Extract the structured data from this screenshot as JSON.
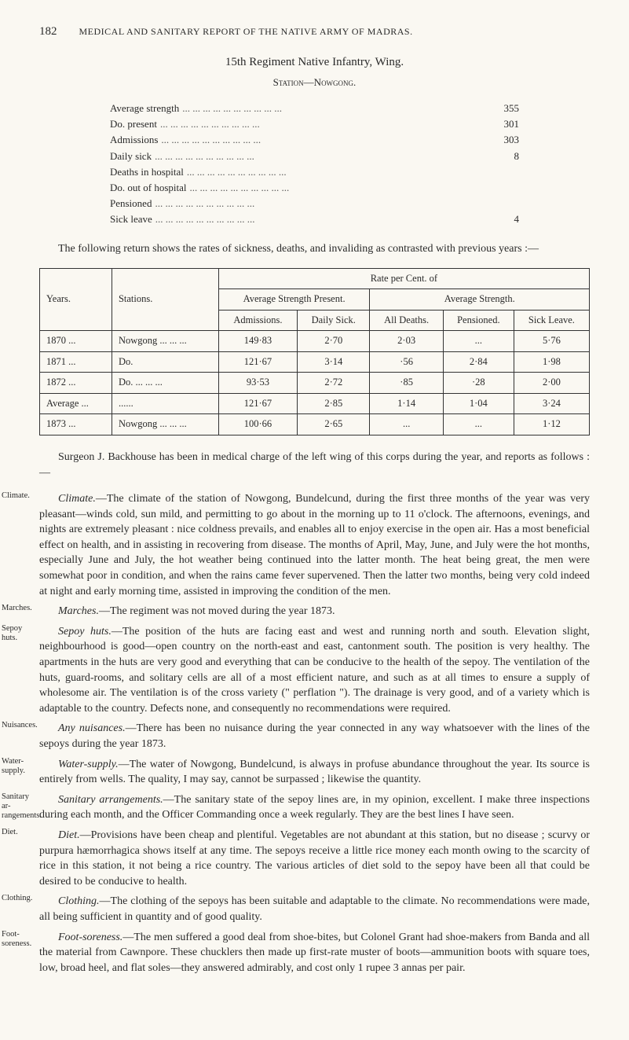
{
  "page": {
    "number": "182",
    "running_title": "MEDICAL AND SANITARY REPORT OF THE NATIVE ARMY OF MADRAS."
  },
  "section_title": "15th Regiment Native Infantry, Wing.",
  "station": "Station—Nowgong.",
  "stats": [
    {
      "label": "Average strength",
      "value": "355"
    },
    {
      "label": "Do.            present",
      "value": "301"
    },
    {
      "label": "Admissions",
      "value": "303"
    },
    {
      "label": "Daily sick",
      "value": "8"
    },
    {
      "label": "Deaths in hospital",
      "value": ""
    },
    {
      "label": "Do.  out of hospital",
      "value": ""
    },
    {
      "label": "Pensioned",
      "value": ""
    },
    {
      "label": "Sick leave",
      "value": "4"
    }
  ],
  "dots": "...   ...   ...   ...   ...   ...   ...   ...   ...   ...",
  "intro_para": "The following return shows the rates of sickness, deaths, and invaliding as contrasted with previous years :—",
  "table": {
    "super_header": "Rate per Cent. of",
    "headers": {
      "years": "Years.",
      "stations": "Stations.",
      "avg_present": "Average Strength Present.",
      "avg_strength": "Average Strength.",
      "admissions": "Admissions.",
      "daily_sick": "Daily Sick.",
      "all_deaths": "All Deaths.",
      "pensioned": "Pensioned.",
      "sick_leave": "Sick Leave."
    },
    "rows": [
      {
        "year": "1870   ...",
        "station": "Nowgong   ...   ...   ...",
        "admissions": "149·83",
        "daily_sick": "2·70",
        "all_deaths": "2·03",
        "pensioned": "...",
        "sick_leave": "5·76"
      },
      {
        "year": "1871   ...",
        "station": "Do.",
        "admissions": "121·67",
        "daily_sick": "3·14",
        "all_deaths": "·56",
        "pensioned": "2·84",
        "sick_leave": "1·98"
      },
      {
        "year": "1872   ...",
        "station": "Do.   ...   ...   ...",
        "admissions": "93·53",
        "daily_sick": "2·72",
        "all_deaths": "·85",
        "pensioned": "·28",
        "sick_leave": "2·00"
      }
    ],
    "average_row": {
      "year": "Average ...",
      "station": "......",
      "admissions": "121·67",
      "daily_sick": "2·85",
      "all_deaths": "1·14",
      "pensioned": "1·04",
      "sick_leave": "3·24"
    },
    "final_row": {
      "year": "1873   ...",
      "station": "Nowgong   ...   ...   ...",
      "admissions": "100·66",
      "daily_sick": "2·65",
      "all_deaths": "...",
      "pensioned": "...",
      "sick_leave": "1·12"
    }
  },
  "surgeon_para": "Surgeon J. Backhouse has been in medical charge of the left wing of this corps during the year, and reports as follows :—",
  "margin_sections": [
    {
      "label": "Climate.",
      "heading": "Climate.",
      "text": "—The climate of the station of Nowgong, Bundelcund, during the first three months of the year was very pleasant—winds cold, sun mild, and permitting to go about in the morning up to 11 o'clock. The afternoons, evenings, and nights are extremely pleasant : nice coldness prevails, and enables all to enjoy exercise in the open air. Has a most beneficial effect on health, and in assisting in recovering from disease. The months of April, May, June, and July were the hot months, especially June and July, the hot weather being continued into the latter month. The heat being great, the men were somewhat poor in condition, and when the rains came fever supervened. Then the latter two months, being very cold indeed at night and early morning time, assisted in improving the condition of the men."
    },
    {
      "label": "Marches.",
      "heading": "Marches.",
      "text": "—The regiment was not moved during the year 1873."
    },
    {
      "label": "Sepoy huts.",
      "heading": "Sepoy huts.",
      "text": "—The position of the huts are facing east and west and running north and south. Elevation slight, neighbourhood is good—open country on the north-east and east, cantonment south. The position is very healthy. The apartments in the huts are very good and everything that can be conducive to the health of the sepoy. The ventilation of the huts, guard-rooms, and solitary cells are all of a most efficient nature, and such as at all times to ensure a supply of wholesome air. The ventilation is of the cross variety (\" perflation \"). The drainage is very good, and of a variety which is adaptable to the country. Defects none, and consequently no recommendations were required."
    },
    {
      "label": "Nuisances.",
      "heading": "Any nuisances.",
      "text": "—There has been no nuisance during the year connected in any way whatsoever with the lines of the sepoys during the year 1873."
    },
    {
      "label": "Water-supply.",
      "heading": "Water-supply.",
      "text": "—The water of Nowgong, Bundelcund, is always in profuse abundance throughout the year. Its source is entirely from wells. The quality, I may say, cannot be surpassed ; likewise the quantity."
    },
    {
      "label": "Sanitary ar-\nrangements.",
      "heading": "Sanitary arrangements.",
      "text": "—The sanitary state of the sepoy lines are, in my opinion, excellent. I make three inspections during each month, and the Officer Commanding once a week regularly. They are the best lines I have seen."
    },
    {
      "label": "Diet.",
      "heading": "Diet.",
      "text": "—Provisions have been cheap and plentiful. Vegetables are not abundant at this station, but no disease ; scurvy or purpura hæmorrhagica shows itself at any time. The sepoys receive a little rice money each month owing to the scarcity of rice in this station, it not being a rice country. The various articles of diet sold to the sepoy have been all that could be desired to be conducive to health."
    },
    {
      "label": "Clothing.",
      "heading": "Clothing.",
      "text": "—The clothing of the sepoys has been suitable and adaptable to the climate. No recommendations were made, all being sufficient in quantity and of good quality."
    },
    {
      "label": "Foot-soreness.",
      "heading": "Foot-soreness.",
      "text": "—The men suffered a good deal from shoe-bites, but Colonel Grant had shoe-makers from Banda and all the material from Cawnpore. These chucklers then made up first-rate muster of boots—ammunition boots with square toes, low, broad heel, and flat soles—they answered admirably, and cost only 1 rupee 3 annas per pair."
    }
  ]
}
